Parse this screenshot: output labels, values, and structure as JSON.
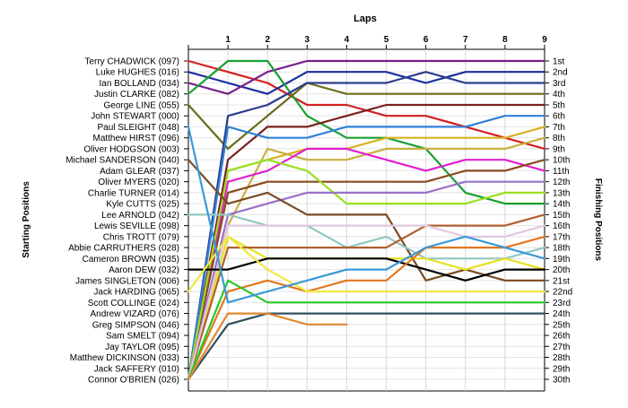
{
  "chart_data": {
    "type": "line",
    "title": "Laps",
    "ylabel_left": "Starting Positions",
    "ylabel_right": "Finishing Positions",
    "laps": [
      1,
      2,
      3,
      4,
      5,
      6,
      7,
      8,
      9
    ],
    "finishing_labels": [
      "1st",
      "2nd",
      "3rd",
      "4th",
      "5th",
      "6th",
      "7th",
      "8th",
      "9th",
      "10th",
      "11th",
      "12th",
      "13th",
      "14th",
      "15th",
      "16th",
      "17th",
      "18th",
      "19th",
      "20th",
      "21st",
      "22nd",
      "23rd",
      "24th",
      "25th",
      "26th",
      "27th",
      "28th",
      "29th",
      "30th"
    ],
    "drivers": [
      {
        "name": "Terry CHADWICK (097)",
        "color": "#d42020",
        "positions": [
          1,
          2,
          3,
          5,
          5,
          6,
          6,
          7,
          8,
          9
        ]
      },
      {
        "name": "Luke HUGHES (016)",
        "color": "#1a2f9e",
        "positions": [
          2,
          3,
          4,
          2,
          2,
          2,
          3,
          2,
          2,
          2
        ]
      },
      {
        "name": "Ian BOLLAND (034)",
        "color": "#7a1c8e",
        "positions": [
          3,
          4,
          2,
          1,
          1,
          1,
          1,
          1,
          1,
          1
        ]
      },
      {
        "name": "Justin CLARKE (082)",
        "color": "#18a030",
        "positions": [
          4,
          1,
          1,
          6,
          8,
          8,
          9,
          13,
          14,
          14
        ]
      },
      {
        "name": "George LINE (055)",
        "color": "#6b6b1a",
        "positions": [
          5,
          9,
          6,
          3,
          4,
          4,
          4,
          4,
          4,
          4
        ]
      },
      {
        "name": "John STEWART (000)",
        "color": "#2c3c8c",
        "positions": [
          30,
          6,
          5,
          3,
          3,
          3,
          2,
          3,
          3,
          3
        ]
      },
      {
        "name": "Paul SLEIGHT (048)",
        "color": "#7a2020",
        "positions": [
          30,
          10,
          7,
          7,
          6,
          5,
          5,
          5,
          5,
          5
        ]
      },
      {
        "name": "Matthew HIRST (096)",
        "color": "#3080d8",
        "positions": [
          30,
          7,
          8,
          8,
          7,
          7,
          7,
          7,
          6,
          6
        ]
      },
      {
        "name": "Oliver HODGSON (003)",
        "color": "#d8b020",
        "positions": [
          30,
          11,
          10,
          9,
          9,
          8,
          8,
          8,
          8,
          7
        ]
      },
      {
        "name": "Michael SANDERSON (040)",
        "color": "#c8b040",
        "positions": [
          30,
          16,
          9,
          10,
          10,
          9,
          9,
          9,
          9,
          8
        ]
      },
      {
        "name": "Adam GLEAR (037)",
        "color": "#e020d0",
        "positions": [
          30,
          12,
          11,
          9,
          9,
          10,
          11,
          10,
          10,
          11
        ]
      },
      {
        "name": "Oliver MYERS (020)",
        "color": "#8a4a20",
        "positions": [
          30,
          13,
          12,
          12,
          12,
          12,
          12,
          11,
          11,
          10
        ]
      },
      {
        "name": "Charlie TURNER (014)",
        "color": "#98e020",
        "positions": [
          30,
          11,
          10,
          11,
          14,
          14,
          14,
          14,
          13,
          13
        ]
      },
      {
        "name": "Kyle CUTTS (025)",
        "color": "#9a70c8",
        "positions": [
          30,
          15,
          14,
          13,
          13,
          13,
          13,
          12,
          12,
          12
        ]
      },
      {
        "name": "Lee ARNOLD (042)",
        "color": "#7a4a20",
        "positions": [
          10,
          14,
          13,
          15,
          15,
          15,
          21,
          20,
          21,
          21
        ]
      },
      {
        "name": "Lewis SEVILLE (098)",
        "color": "#90c8c0",
        "positions": [
          15,
          15,
          16,
          16,
          18,
          17,
          19,
          19,
          19,
          18
        ]
      },
      {
        "name": "Chris TROTT (079)",
        "color": "#e8e020",
        "positions": [
          30,
          17,
          19,
          19,
          19,
          19,
          19,
          20,
          19,
          20
        ]
      },
      {
        "name": "Abbie CARRUTHERS (028)",
        "color": "#b06030",
        "positions": [
          30,
          18,
          18,
          18,
          18,
          18,
          16,
          16,
          16,
          15
        ]
      },
      {
        "name": "Cameron BROWN (035)",
        "color": "#e0c8e0",
        "positions": [
          30,
          16,
          16,
          16,
          16,
          16,
          16,
          17,
          17,
          16
        ]
      },
      {
        "name": "Aaron DEW (032)",
        "color": "#000000",
        "positions": [
          20,
          20,
          19,
          19,
          19,
          19,
          20,
          21,
          20,
          20
        ]
      },
      {
        "name": "James SINGLETON (006)",
        "color": "#e07820",
        "positions": [
          30,
          22,
          21,
          22,
          21,
          21,
          18,
          18,
          18,
          17
        ]
      },
      {
        "name": "Jack HARDING (065)",
        "color": "#f0e840",
        "positions": [
          22,
          17,
          20,
          22,
          22,
          22,
          22,
          22,
          22,
          22
        ]
      },
      {
        "name": "Scott COLLINGE (024)",
        "color": "#28c828",
        "positions": [
          30,
          21,
          23,
          23,
          23,
          23,
          23,
          23,
          23,
          23
        ]
      },
      {
        "name": "Andrew VIZARD (076)",
        "color": "#305060",
        "positions": [
          30,
          25,
          24,
          24,
          24,
          24,
          24,
          24,
          24,
          24
        ]
      },
      {
        "name": "Greg SIMPSON (046)",
        "color": "#e08830",
        "positions": [
          30,
          24,
          24,
          25,
          25
        ]
      },
      {
        "name": "Sam SMELT (094)",
        "color": "#3a9ad8",
        "positions": [
          7,
          23,
          22,
          21,
          20,
          20,
          18,
          17,
          18,
          19
        ]
      },
      {
        "name": "Jay TAYLOR (095)",
        "color": "#2050c0",
        "positions": [
          27
        ]
      },
      {
        "name": "Matthew DICKINSON (033)",
        "color": "#9a9a9a",
        "positions": [
          28
        ]
      },
      {
        "name": "Jack SAFFERY (010)",
        "color": "#c09060",
        "positions": [
          29
        ]
      },
      {
        "name": "Connor O'BRIEN (026)",
        "color": "#707070",
        "positions": [
          30
        ]
      }
    ]
  }
}
